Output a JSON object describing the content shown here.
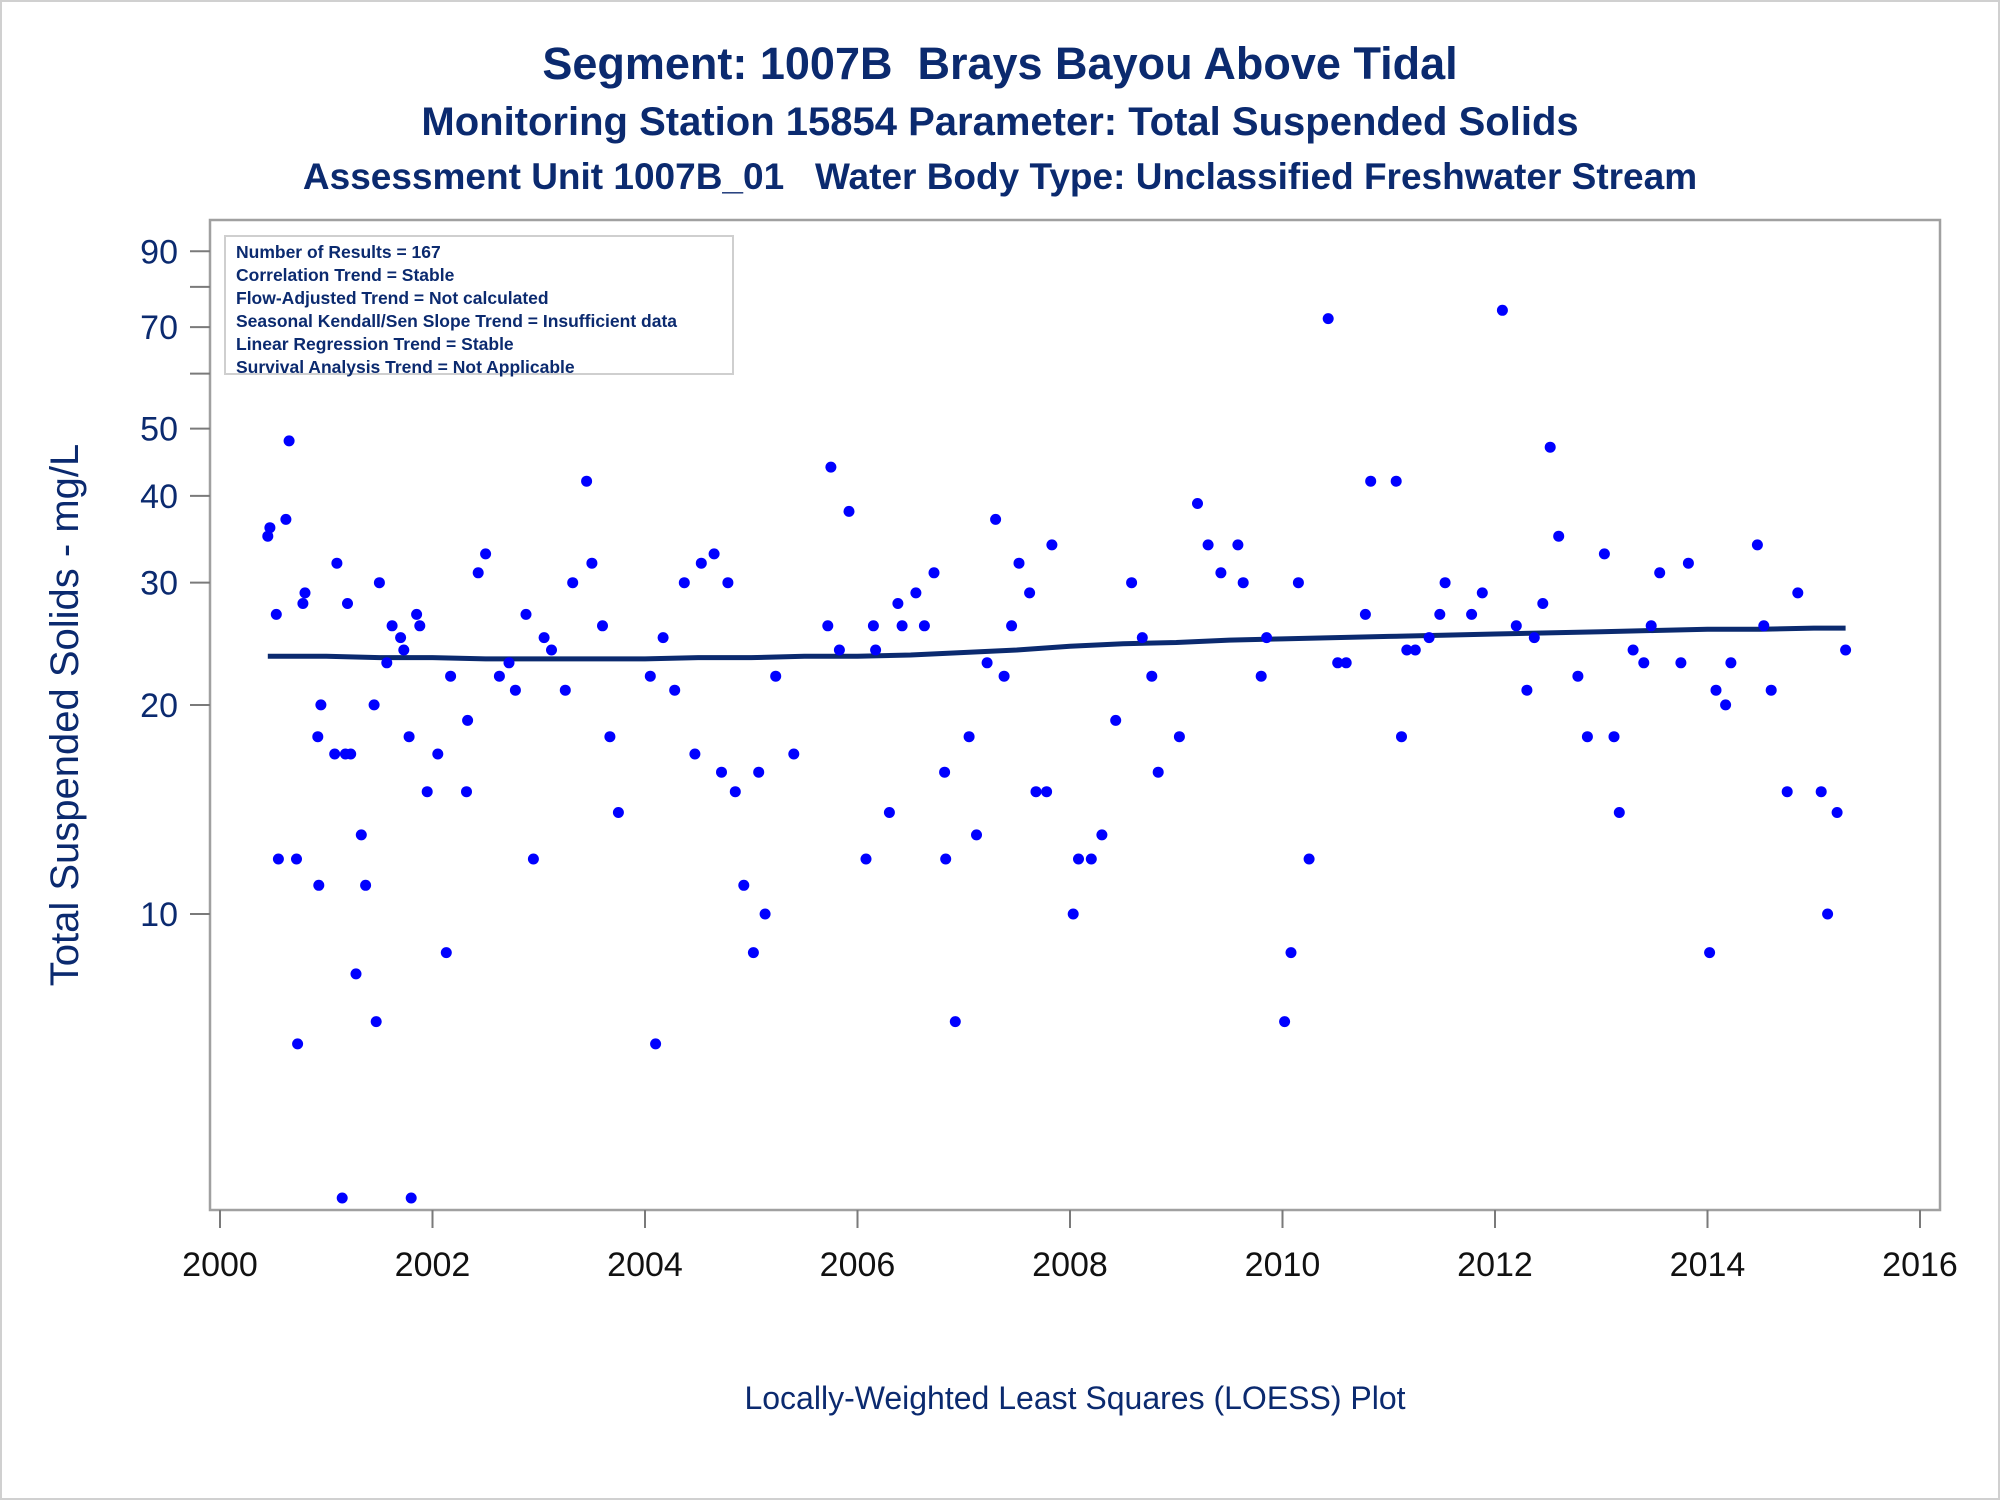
{
  "titles": {
    "line1": "Segment: 1007B  Brays Bayou Above Tidal",
    "line2": "Monitoring Station 15854 Parameter: Total Suspended Solids",
    "line3": "Assessment Unit 1007B_01   Water Body Type: Unclassified Freshwater Stream"
  },
  "stats_box": [
    "Number of Results = 167",
    "Correlation Trend = Stable",
    "Flow-Adjusted Trend = Not calculated",
    "Seasonal Kendall/Sen Slope Trend = Insufficient data",
    "Linear Regression Trend = Stable",
    "Survival Analysis Trend = Not Applicable"
  ],
  "footnote": "Locally-Weighted Least Squares (LOESS) Plot",
  "colors": {
    "points": "#0000ff",
    "loess": "#0b2a6f",
    "text": "#0b2a6f",
    "frame": "#a0a0a0"
  },
  "chart_data": {
    "type": "scatter",
    "ylabel": "Total Suspended Solids - mg/L",
    "xlabel": "",
    "y_scale": "log",
    "xlim": [
      2000,
      2016
    ],
    "ylim": [
      3.9,
      95
    ],
    "x_ticks": [
      2000,
      2002,
      2004,
      2006,
      2008,
      2010,
      2012,
      2014,
      2016
    ],
    "y_ticks": [
      10,
      20,
      30,
      40,
      50,
      70,
      90
    ],
    "y_minor_ticks": [
      60,
      80
    ],
    "series": [
      {
        "kind": "points",
        "points": [
          [
            2000.45,
            35
          ],
          [
            2000.47,
            36
          ],
          [
            2000.53,
            27
          ],
          [
            2000.55,
            12
          ],
          [
            2000.62,
            37
          ],
          [
            2000.65,
            48
          ],
          [
            2000.72,
            12
          ],
          [
            2000.73,
            6.5
          ],
          [
            2000.78,
            28
          ],
          [
            2000.8,
            29
          ],
          [
            2000.92,
            18
          ],
          [
            2000.93,
            11
          ],
          [
            2000.95,
            20
          ],
          [
            2000.98,
            70
          ],
          [
            2001.08,
            17
          ],
          [
            2001.1,
            32
          ],
          [
            2001.18,
            17
          ],
          [
            2001.2,
            28
          ],
          [
            2001.23,
            17
          ],
          [
            2001.28,
            8.2
          ],
          [
            2001.3,
            92
          ],
          [
            2001.33,
            13
          ],
          [
            2001.37,
            11
          ],
          [
            2001.45,
            20
          ],
          [
            2001.47,
            7
          ],
          [
            2001.5,
            30
          ],
          [
            2001.57,
            23
          ],
          [
            2001.62,
            26
          ],
          [
            2001.7,
            25
          ],
          [
            2001.73,
            24
          ],
          [
            2001.78,
            18
          ],
          [
            2001.85,
            27
          ],
          [
            2001.88,
            26
          ],
          [
            2001.95,
            15
          ],
          [
            2002.05,
            17
          ],
          [
            2002.13,
            8.8
          ],
          [
            2002.17,
            22
          ],
          [
            2002.32,
            15
          ],
          [
            2002.33,
            19
          ],
          [
            2002.43,
            31
          ],
          [
            2002.5,
            33
          ],
          [
            2002.63,
            22
          ],
          [
            2002.72,
            23
          ],
          [
            2002.78,
            21
          ],
          [
            2002.88,
            27
          ],
          [
            2002.95,
            12
          ],
          [
            2003.05,
            25
          ],
          [
            2003.12,
            24
          ],
          [
            2003.25,
            21
          ],
          [
            2003.32,
            30
          ],
          [
            2003.45,
            42
          ],
          [
            2003.5,
            32
          ],
          [
            2003.6,
            26
          ],
          [
            2003.67,
            18
          ],
          [
            2003.75,
            14
          ],
          [
            2004.05,
            22
          ],
          [
            2004.1,
            6.5
          ],
          [
            2004.17,
            25
          ],
          [
            2004.28,
            21
          ],
          [
            2004.37,
            30
          ],
          [
            2004.47,
            17
          ],
          [
            2004.53,
            32
          ],
          [
            2004.65,
            33
          ],
          [
            2004.72,
            16
          ],
          [
            2004.78,
            30
          ],
          [
            2004.85,
            15
          ],
          [
            2004.93,
            11
          ],
          [
            2005.02,
            8.8
          ],
          [
            2005.07,
            16
          ],
          [
            2005.13,
            10
          ],
          [
            2005.23,
            22
          ],
          [
            2005.4,
            17
          ],
          [
            2005.72,
            26
          ],
          [
            2005.75,
            44
          ],
          [
            2005.83,
            24
          ],
          [
            2005.92,
            38
          ],
          [
            2006.08,
            12
          ],
          [
            2006.15,
            26
          ],
          [
            2006.17,
            24
          ],
          [
            2006.3,
            14
          ],
          [
            2006.38,
            28
          ],
          [
            2006.42,
            26
          ],
          [
            2006.55,
            29
          ],
          [
            2006.63,
            26
          ],
          [
            2006.72,
            31
          ],
          [
            2006.82,
            16
          ],
          [
            2006.83,
            12
          ],
          [
            2006.92,
            7
          ],
          [
            2007.05,
            18
          ],
          [
            2007.12,
            13
          ],
          [
            2007.22,
            23
          ],
          [
            2007.3,
            37
          ],
          [
            2007.38,
            22
          ],
          [
            2007.45,
            26
          ],
          [
            2007.52,
            32
          ],
          [
            2007.62,
            29
          ],
          [
            2007.68,
            15
          ],
          [
            2007.78,
            15
          ],
          [
            2007.83,
            34
          ],
          [
            2008.03,
            10
          ],
          [
            2008.08,
            12
          ],
          [
            2008.2,
            12
          ],
          [
            2008.3,
            13
          ],
          [
            2008.43,
            19
          ],
          [
            2008.58,
            30
          ],
          [
            2008.68,
            25
          ],
          [
            2008.77,
            22
          ],
          [
            2008.83,
            16
          ],
          [
            2009.03,
            18
          ],
          [
            2009.2,
            39
          ],
          [
            2009.3,
            34
          ],
          [
            2009.42,
            31
          ],
          [
            2009.58,
            34
          ],
          [
            2009.63,
            30
          ],
          [
            2009.8,
            22
          ],
          [
            2009.85,
            25
          ],
          [
            2010.02,
            7
          ],
          [
            2010.08,
            8.8
          ],
          [
            2010.15,
            30
          ],
          [
            2010.25,
            12
          ],
          [
            2010.43,
            72
          ],
          [
            2010.52,
            23
          ],
          [
            2010.6,
            23
          ],
          [
            2010.78,
            27
          ],
          [
            2010.83,
            42
          ],
          [
            2011.07,
            42
          ],
          [
            2011.12,
            18
          ],
          [
            2011.17,
            24
          ],
          [
            2011.25,
            24
          ],
          [
            2011.38,
            25
          ],
          [
            2011.48,
            27
          ],
          [
            2011.53,
            30
          ],
          [
            2011.78,
            27
          ],
          [
            2011.88,
            29
          ],
          [
            2012.07,
            74
          ],
          [
            2012.2,
            26
          ],
          [
            2012.3,
            21
          ],
          [
            2012.37,
            25
          ],
          [
            2012.45,
            28
          ],
          [
            2012.52,
            47
          ],
          [
            2012.6,
            35
          ],
          [
            2012.78,
            22
          ],
          [
            2012.87,
            18
          ],
          [
            2013.03,
            33
          ],
          [
            2013.12,
            18
          ],
          [
            2013.17,
            14
          ],
          [
            2013.3,
            24
          ],
          [
            2013.4,
            23
          ],
          [
            2013.47,
            26
          ],
          [
            2013.55,
            31
          ],
          [
            2013.75,
            23
          ],
          [
            2013.82,
            32
          ],
          [
            2014.02,
            8.8
          ],
          [
            2014.08,
            21
          ],
          [
            2014.17,
            20
          ],
          [
            2014.22,
            23
          ],
          [
            2014.47,
            34
          ],
          [
            2014.53,
            26
          ],
          [
            2014.6,
            21
          ],
          [
            2014.75,
            15
          ],
          [
            2014.85,
            29
          ],
          [
            2015.07,
            15
          ],
          [
            2015.13,
            10
          ],
          [
            2015.22,
            14
          ],
          [
            2015.3,
            24
          ],
          [
            2001.15,
            3.9
          ],
          [
            2001.8,
            3.9
          ]
        ]
      },
      {
        "kind": "loess",
        "points": [
          [
            2000.45,
            23.5
          ],
          [
            2001.0,
            23.5
          ],
          [
            2001.5,
            23.4
          ],
          [
            2002.0,
            23.4
          ],
          [
            2002.5,
            23.3
          ],
          [
            2003.0,
            23.3
          ],
          [
            2003.5,
            23.3
          ],
          [
            2004.0,
            23.3
          ],
          [
            2004.5,
            23.4
          ],
          [
            2005.0,
            23.4
          ],
          [
            2005.5,
            23.5
          ],
          [
            2006.0,
            23.5
          ],
          [
            2006.5,
            23.6
          ],
          [
            2007.0,
            23.8
          ],
          [
            2007.5,
            24.0
          ],
          [
            2008.0,
            24.3
          ],
          [
            2008.5,
            24.5
          ],
          [
            2009.0,
            24.6
          ],
          [
            2009.5,
            24.8
          ],
          [
            2010.0,
            24.9
          ],
          [
            2010.5,
            25.0
          ],
          [
            2011.0,
            25.1
          ],
          [
            2011.5,
            25.2
          ],
          [
            2012.0,
            25.3
          ],
          [
            2012.5,
            25.4
          ],
          [
            2013.0,
            25.5
          ],
          [
            2013.5,
            25.6
          ],
          [
            2014.0,
            25.7
          ],
          [
            2014.5,
            25.7
          ],
          [
            2015.0,
            25.8
          ],
          [
            2015.3,
            25.8
          ]
        ]
      }
    ]
  }
}
